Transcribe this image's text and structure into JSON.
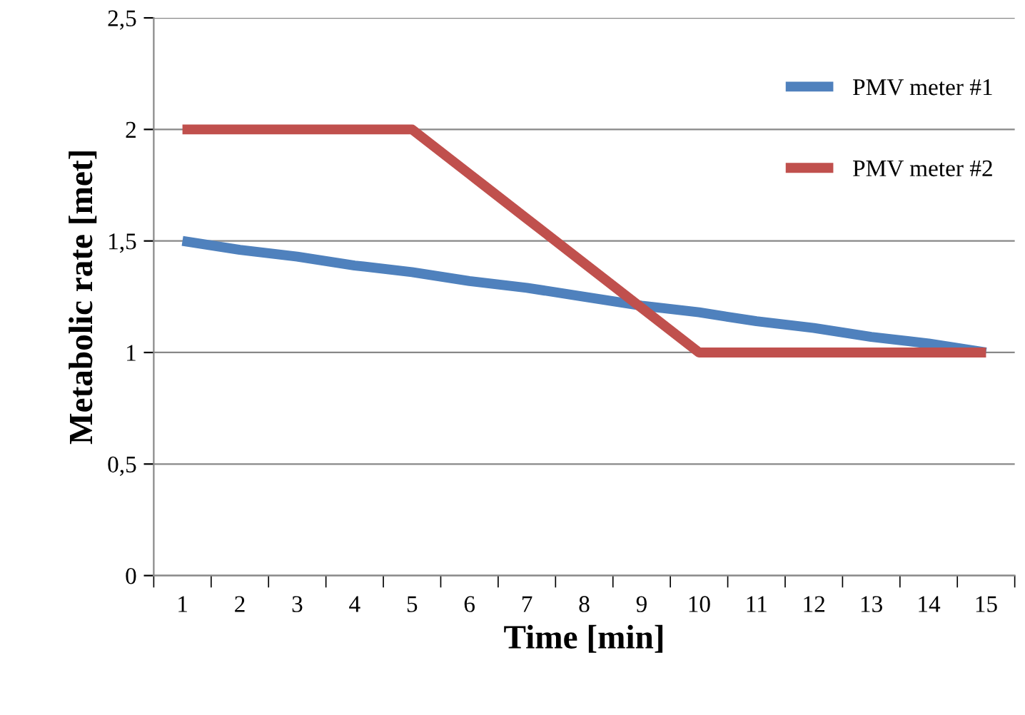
{
  "chart_data": {
    "type": "line",
    "xlabel": "Time [min]",
    "ylabel": "Metabolic rate [met]",
    "categories": [
      "1",
      "2",
      "3",
      "4",
      "5",
      "6",
      "7",
      "8",
      "9",
      "10",
      "11",
      "12",
      "13",
      "14",
      "15"
    ],
    "series": [
      {
        "name": "PMV meter #1",
        "color": "#4f81bd",
        "values": [
          1.5,
          1.46,
          1.43,
          1.39,
          1.36,
          1.32,
          1.29,
          1.25,
          1.21,
          1.18,
          1.14,
          1.11,
          1.07,
          1.04,
          1.0
        ]
      },
      {
        "name": "PMV meter #2",
        "color": "#c0504d",
        "values": [
          2,
          2,
          2,
          2,
          2,
          1.8,
          1.6,
          1.4,
          1.2,
          1,
          1,
          1,
          1,
          1,
          1
        ]
      }
    ],
    "ylim": [
      0,
      2.5
    ],
    "yticks": [
      0,
      {
        "value": 0.5,
        "label": "0,5"
      },
      1,
      {
        "value": 1.5,
        "label": "1,5"
      },
      2,
      {
        "value": 2.5,
        "label": "2,5"
      }
    ],
    "grid": "y",
    "legend": "top right",
    "marker": "none",
    "line_style": "solid"
  }
}
